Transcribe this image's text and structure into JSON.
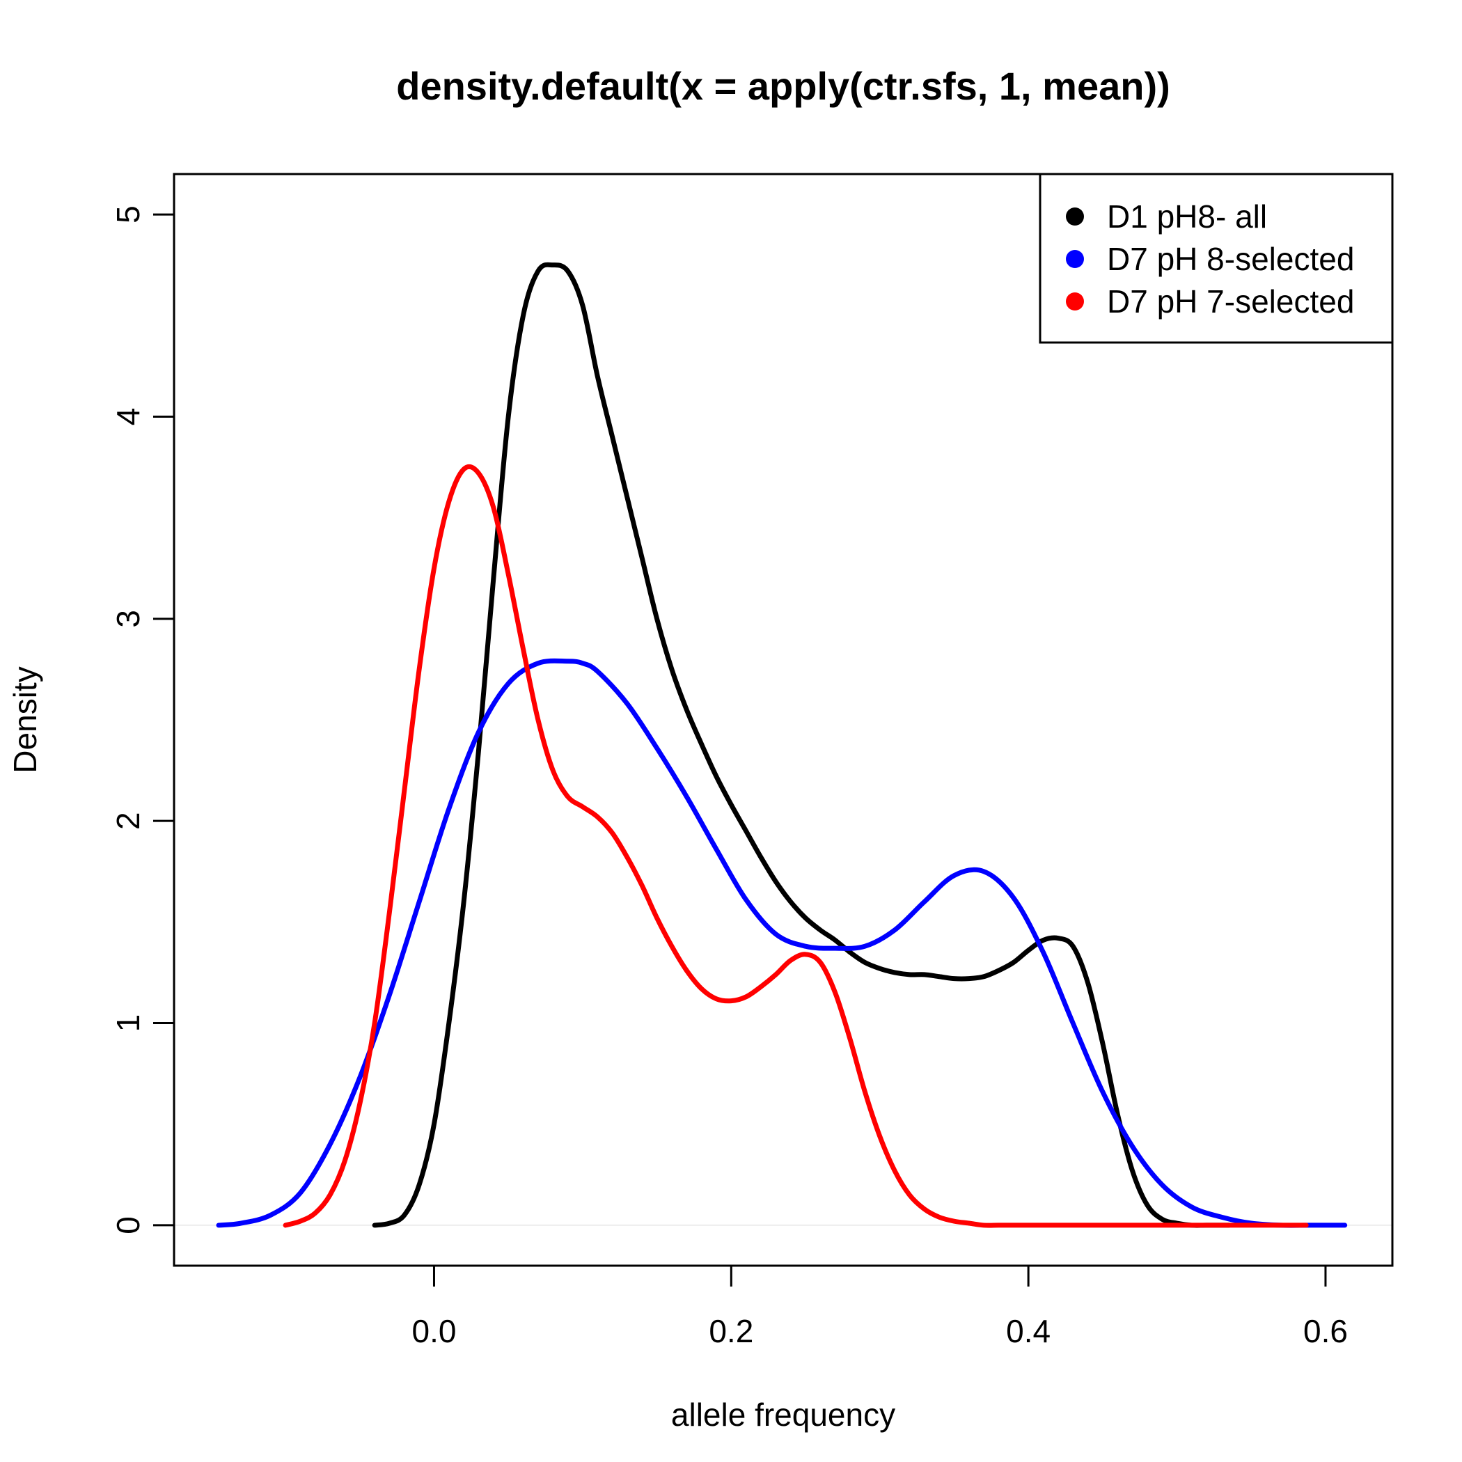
{
  "chart_data": {
    "type": "line",
    "title": "density.default(x = apply(ctr.sfs, 1, mean))",
    "xlabel": "allele frequency",
    "ylabel": "Density",
    "xlim": [
      -0.175,
      0.645
    ],
    "ylim": [
      -0.2,
      5.2
    ],
    "xticks": [
      0.0,
      0.2,
      0.4,
      0.6
    ],
    "xtick_labels": [
      "0.0",
      "0.2",
      "0.4",
      "0.6"
    ],
    "yticks": [
      0,
      1,
      2,
      3,
      4,
      5
    ],
    "ytick_labels": [
      "0",
      "1",
      "2",
      "3",
      "4",
      "5"
    ],
    "grid": false,
    "legend_position": "top-right",
    "baseline": 0,
    "series": [
      {
        "name": "D1 pH8- all",
        "color": "#000000",
        "x": [
          -0.04,
          -0.03,
          -0.02,
          -0.01,
          0.0,
          0.01,
          0.02,
          0.03,
          0.04,
          0.05,
          0.06,
          0.07,
          0.08,
          0.09,
          0.1,
          0.11,
          0.12,
          0.13,
          0.14,
          0.15,
          0.16,
          0.17,
          0.18,
          0.19,
          0.2,
          0.21,
          0.22,
          0.23,
          0.24,
          0.25,
          0.26,
          0.27,
          0.28,
          0.29,
          0.3,
          0.31,
          0.32,
          0.33,
          0.34,
          0.35,
          0.36,
          0.37,
          0.38,
          0.39,
          0.4,
          0.41,
          0.42,
          0.43,
          0.44,
          0.45,
          0.46,
          0.47,
          0.48,
          0.49,
          0.5,
          0.51,
          0.52,
          0.535
        ],
        "y": [
          0.0,
          0.01,
          0.05,
          0.2,
          0.5,
          1.0,
          1.6,
          2.35,
          3.2,
          4.0,
          4.5,
          4.72,
          4.75,
          4.72,
          4.55,
          4.2,
          3.9,
          3.6,
          3.3,
          3.0,
          2.75,
          2.55,
          2.38,
          2.22,
          2.08,
          1.95,
          1.82,
          1.7,
          1.6,
          1.52,
          1.46,
          1.41,
          1.35,
          1.3,
          1.27,
          1.25,
          1.24,
          1.24,
          1.23,
          1.22,
          1.22,
          1.23,
          1.26,
          1.3,
          1.36,
          1.41,
          1.42,
          1.38,
          1.2,
          0.9,
          0.55,
          0.27,
          0.1,
          0.03,
          0.01,
          0.0,
          0.0,
          0.0
        ]
      },
      {
        "name": "D7 pH 8-selected",
        "color": "#0000ff",
        "x": [
          -0.145,
          -0.13,
          -0.11,
          -0.09,
          -0.07,
          -0.05,
          -0.03,
          -0.01,
          0.01,
          0.03,
          0.05,
          0.07,
          0.09,
          0.1,
          0.11,
          0.13,
          0.15,
          0.17,
          0.19,
          0.21,
          0.23,
          0.25,
          0.27,
          0.29,
          0.31,
          0.33,
          0.35,
          0.37,
          0.39,
          0.41,
          0.43,
          0.45,
          0.47,
          0.49,
          0.51,
          0.53,
          0.55,
          0.57,
          0.59,
          0.613
        ],
        "y": [
          0.0,
          0.01,
          0.05,
          0.16,
          0.4,
          0.73,
          1.14,
          1.6,
          2.06,
          2.44,
          2.68,
          2.78,
          2.79,
          2.78,
          2.74,
          2.58,
          2.36,
          2.12,
          1.86,
          1.61,
          1.44,
          1.38,
          1.37,
          1.38,
          1.46,
          1.6,
          1.73,
          1.75,
          1.62,
          1.35,
          1.0,
          0.66,
          0.39,
          0.2,
          0.09,
          0.04,
          0.01,
          0.0,
          0.0,
          0.0
        ]
      },
      {
        "name": "D7 pH 7-selected",
        "color": "#ff0000",
        "x": [
          -0.1,
          -0.09,
          -0.08,
          -0.07,
          -0.06,
          -0.05,
          -0.04,
          -0.03,
          -0.02,
          -0.01,
          0.0,
          0.01,
          0.02,
          0.03,
          0.04,
          0.05,
          0.06,
          0.07,
          0.08,
          0.09,
          0.1,
          0.11,
          0.12,
          0.13,
          0.14,
          0.15,
          0.16,
          0.17,
          0.18,
          0.19,
          0.2,
          0.21,
          0.22,
          0.23,
          0.24,
          0.25,
          0.26,
          0.27,
          0.28,
          0.29,
          0.3,
          0.31,
          0.32,
          0.33,
          0.34,
          0.35,
          0.36,
          0.37,
          0.38,
          0.39,
          0.4,
          0.41,
          0.42,
          0.43,
          0.44,
          0.45,
          0.46,
          0.47,
          0.48,
          0.49,
          0.5,
          0.51,
          0.52,
          0.53,
          0.54,
          0.55,
          0.56,
          0.57,
          0.587
        ],
        "y": [
          0.0,
          0.02,
          0.06,
          0.15,
          0.32,
          0.6,
          1.0,
          1.55,
          2.15,
          2.75,
          3.25,
          3.58,
          3.74,
          3.72,
          3.55,
          3.22,
          2.85,
          2.5,
          2.25,
          2.12,
          2.07,
          2.02,
          1.94,
          1.82,
          1.68,
          1.52,
          1.38,
          1.26,
          1.17,
          1.12,
          1.11,
          1.13,
          1.18,
          1.24,
          1.31,
          1.34,
          1.3,
          1.15,
          0.92,
          0.66,
          0.44,
          0.27,
          0.15,
          0.08,
          0.04,
          0.02,
          0.01,
          0.0,
          0.0,
          0.0,
          0.0,
          0.0,
          0.0,
          0.0,
          0.0,
          0.0,
          0.0,
          0.0,
          0.0,
          0.0,
          0.0,
          0.0,
          0.0,
          0.0,
          0.0,
          0.0,
          0.0,
          0.0,
          0.0
        ]
      }
    ]
  }
}
